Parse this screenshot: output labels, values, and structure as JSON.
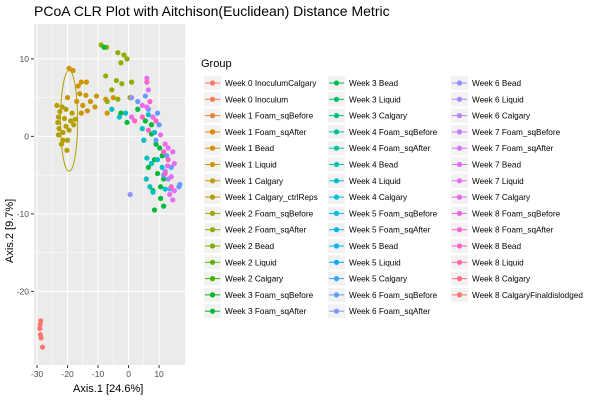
{
  "chart_data": {
    "type": "scatter",
    "title": "PCoA CLR Plot with Aitchison(Euclidean) Distance Metric",
    "xlabel": "Axis.1   [24.6%]",
    "ylabel": "Axis.2   [9.7%]",
    "xlim": [
      -31,
      18.5
    ],
    "ylim": [
      -29.5,
      14.5
    ],
    "xticks": [
      -30,
      -20,
      -10,
      0,
      10
    ],
    "yticks": [
      10,
      0,
      -10,
      -20
    ],
    "grid": true,
    "legend_title": "Group",
    "legend_position": "right",
    "legend": [
      {
        "label": "Week 0 InoculumCalgary",
        "color": "#F8766D"
      },
      {
        "label": "Week 0 Inoculum",
        "color": "#F27D52"
      },
      {
        "label": "Week 1 Foam_sqBefore",
        "color": "#EA8331"
      },
      {
        "label": "Week 1 Foam_sqAfter",
        "color": "#E18A00"
      },
      {
        "label": "Week 1 Bead",
        "color": "#D89000"
      },
      {
        "label": "Week 1 Liquid",
        "color": "#CD9600"
      },
      {
        "label": "Week 1 Calgary",
        "color": "#C09B00"
      },
      {
        "label": "Week 1 Calgary_ctrlReps",
        "color": "#B3A000"
      },
      {
        "label": "Week 2 Foam_sqBefore",
        "color": "#A3A500"
      },
      {
        "label": "Week 2 Foam_sqAfter",
        "color": "#93AA00"
      },
      {
        "label": "Week 2 Bead",
        "color": "#7CAE00"
      },
      {
        "label": "Week 2 Liquid",
        "color": "#5EB300"
      },
      {
        "label": "Week 2 Calgary",
        "color": "#39B600"
      },
      {
        "label": "Week 3 Foam_sqBefore",
        "color": "#00B81F"
      },
      {
        "label": "Week 3 Foam_sqAfter",
        "color": "#00BA38"
      },
      {
        "label": "Week 3 Bead",
        "color": "#00BC50"
      },
      {
        "label": "Week 3 Liquid",
        "color": "#00BE67"
      },
      {
        "label": "Week 3 Calgary",
        "color": "#00BF7D"
      },
      {
        "label": "Week 4 Foam_sqBefore",
        "color": "#00C091"
      },
      {
        "label": "Week 4 Foam_sqAfter",
        "color": "#00C1A3"
      },
      {
        "label": "Week 4 Bead",
        "color": "#00C0B4"
      },
      {
        "label": "Week 4 Liquid",
        "color": "#00BFC4"
      },
      {
        "label": "Week 4 Calgary",
        "color": "#00BDD4"
      },
      {
        "label": "Week 5 Foam_sqBefore",
        "color": "#00BAE0"
      },
      {
        "label": "Week 5 Foam_sqAfter",
        "color": "#00B5EC"
      },
      {
        "label": "Week 5 Bead",
        "color": "#00B0F6"
      },
      {
        "label": "Week 5 Liquid",
        "color": "#00A9FF"
      },
      {
        "label": "Week 5 Calgary",
        "color": "#35A2FF"
      },
      {
        "label": "Week 6 Foam_sqBefore",
        "color": "#619CFF"
      },
      {
        "label": "Week 6 Foam_sqAfter",
        "color": "#7F96FF"
      },
      {
        "label": "Week 6 Bead",
        "color": "#9590FF"
      },
      {
        "label": "Week 6 Liquid",
        "color": "#A58AFF"
      },
      {
        "label": "Week 6 Calgary",
        "color": "#B983FF"
      },
      {
        "label": "Week 7 Foam_sqBefore",
        "color": "#C77CFF"
      },
      {
        "label": "Week 7 Foam_sqAfter",
        "color": "#D575FE"
      },
      {
        "label": "Week 7 Bead",
        "color": "#E16EF6"
      },
      {
        "label": "Week 7 Liquid",
        "color": "#E76BF3"
      },
      {
        "label": "Week 7 Calgary",
        "color": "#F064E9"
      },
      {
        "label": "Week 8 Foam_sqBefore",
        "color": "#F763E0"
      },
      {
        "label": "Week 8 Foam_sqAfter",
        "color": "#FA62D4"
      },
      {
        "label": "Week 8 Bead",
        "color": "#FF61C3"
      },
      {
        "label": "Week 8 Liquid",
        "color": "#FF67A4"
      },
      {
        "label": "Week 8 Calgary",
        "color": "#FD6F88"
      },
      {
        "label": "Week 8 CalgaryFinaldislodged",
        "color": "#F8766D"
      }
    ],
    "ellipse": {
      "cx": -19.5,
      "cy": 2,
      "rx": 2.8,
      "ry": 6.5,
      "color": "#B3A000"
    },
    "series": [
      {
        "color": "#F8766D",
        "points": [
          [
            -28.8,
            -23.8
          ],
          [
            -29.0,
            -24.3
          ],
          [
            -29.1,
            -24.8
          ],
          [
            -28.9,
            -25.6
          ],
          [
            -28.7,
            -26.0
          ],
          [
            -28.2,
            -27.2
          ]
        ]
      },
      {
        "color": "#B3A000",
        "points": [
          [
            -23.5,
            4.0
          ],
          [
            -21.8,
            3.8
          ],
          [
            -20.5,
            3.5
          ],
          [
            -22.5,
            3.2
          ],
          [
            -23.0,
            2.5
          ],
          [
            -21.0,
            2.3
          ],
          [
            -19.0,
            2.0
          ],
          [
            -23.2,
            1.8
          ],
          [
            -20.5,
            1.3
          ],
          [
            -18.0,
            1.5
          ],
          [
            -22.8,
            1.0
          ],
          [
            -21.5,
            0.5
          ],
          [
            -19.5,
            0.8
          ],
          [
            -23.0,
            0.2
          ],
          [
            -21.5,
            -0.5
          ],
          [
            -20.0,
            -0.5
          ],
          [
            -22.0,
            -1.0
          ],
          [
            -20.2,
            -1.8
          ],
          [
            -18.5,
            3.0
          ],
          [
            -17.5,
            2.2
          ]
        ]
      },
      {
        "color": "#CD9600",
        "points": [
          [
            -20.0,
            5.0
          ],
          [
            -17.0,
            4.5
          ],
          [
            -19.5,
            8.8
          ],
          [
            -18.2,
            8.5
          ],
          [
            -16.5,
            6.5
          ],
          [
            -15.5,
            7.0
          ],
          [
            -13.8,
            7.0
          ],
          [
            -16.0,
            5.5
          ],
          [
            -14.0,
            5.3
          ],
          [
            -12.5,
            4.5
          ],
          [
            -10.5,
            5.2
          ],
          [
            -15.0,
            4.0
          ],
          [
            -13.5,
            3.3
          ],
          [
            -11.0,
            3.8
          ],
          [
            -7.5,
            4.8
          ],
          [
            -5.0,
            5.0
          ],
          [
            -15.5,
            3.0
          ],
          [
            -7.0,
            3.0
          ]
        ]
      },
      {
        "color": "#93AA00",
        "points": [
          [
            -9.0,
            11.8
          ],
          [
            -7.2,
            11.5
          ],
          [
            -3.5,
            10.8
          ],
          [
            -1.5,
            10.5
          ],
          [
            -2.5,
            9.5
          ],
          [
            -0.5,
            10.0
          ],
          [
            -7.5,
            7.8
          ],
          [
            -5.5,
            6.0
          ],
          [
            -4.0,
            7.2
          ],
          [
            -2.2,
            6.8
          ],
          [
            1.0,
            7.0
          ],
          [
            -7.0,
            4.5
          ],
          [
            -3.5,
            4.8
          ],
          [
            0.5,
            5.0
          ]
        ]
      },
      {
        "color": "#00BA38",
        "points": [
          [
            -8.0,
            11.5
          ],
          [
            -2.5,
            3.0
          ],
          [
            -0.5,
            1.8
          ],
          [
            3.0,
            3.5
          ],
          [
            5.5,
            2.0
          ],
          [
            7.5,
            1.5
          ],
          [
            7.5,
            0.3
          ],
          [
            9.0,
            -1.0
          ],
          [
            10.2,
            -1.5
          ],
          [
            11.0,
            -2.5
          ],
          [
            8.5,
            -3.0
          ],
          [
            6.5,
            -4.0
          ],
          [
            9.5,
            -4.8
          ],
          [
            11.5,
            -5.5
          ],
          [
            10.5,
            -6.5
          ],
          [
            8.0,
            -7.0
          ],
          [
            10.5,
            -8.0
          ],
          [
            11.5,
            -9.0
          ],
          [
            8.5,
            -9.5
          ]
        ]
      },
      {
        "color": "#00BFC4",
        "points": [
          [
            -5.5,
            3.5
          ],
          [
            -3.0,
            2.5
          ],
          [
            -1.0,
            3.0
          ],
          [
            4.5,
            1.0
          ],
          [
            6.5,
            2.8
          ],
          [
            5.0,
            -0.5
          ],
          [
            8.5,
            0.5
          ],
          [
            6.0,
            -2.8
          ],
          [
            7.5,
            -3.5
          ],
          [
            9.5,
            -3.0
          ],
          [
            11.0,
            -4.0
          ],
          [
            5.8,
            -5.5
          ],
          [
            7.0,
            -6.5
          ],
          [
            12.0,
            -6.8
          ],
          [
            8.0,
            -7.2
          ]
        ]
      },
      {
        "color": "#619CFF",
        "points": [
          [
            3.0,
            4.5
          ],
          [
            5.5,
            5.2
          ],
          [
            6.5,
            3.5
          ],
          [
            9.5,
            3.0
          ],
          [
            10.0,
            1.5
          ],
          [
            9.0,
            -0.5
          ],
          [
            12.5,
            -2.5
          ],
          [
            14.0,
            -4.0
          ],
          [
            11.5,
            -5.0
          ],
          [
            13.5,
            -6.8
          ],
          [
            16.5,
            -6.5
          ],
          [
            16.8,
            -6.2
          ]
        ]
      },
      {
        "color": "#9590FF",
        "points": [
          [
            0.5,
            -7.5
          ],
          [
            1.0,
            5.0
          ],
          [
            12.0,
            -4.5
          ],
          [
            13.0,
            -5.5
          ]
        ]
      },
      {
        "color": "#E76BF3",
        "points": [
          [
            6.0,
            7.5
          ],
          [
            6.5,
            6.0
          ],
          [
            4.5,
            4.0
          ],
          [
            6.0,
            3.8
          ],
          [
            8.0,
            2.5
          ],
          [
            1.0,
            2.5
          ],
          [
            10.5,
            0.2
          ],
          [
            12.0,
            -1.0
          ],
          [
            13.0,
            -1.5
          ],
          [
            14.5,
            -2.0
          ],
          [
            15.0,
            -3.5
          ],
          [
            12.8,
            -3.8
          ],
          [
            14.0,
            -5.2
          ],
          [
            15.0,
            -7.0
          ],
          [
            13.5,
            -7.5
          ],
          [
            14.5,
            -8.2
          ]
        ]
      },
      {
        "color": "#FF61C3",
        "points": [
          [
            6.0,
            7.0
          ],
          [
            7.0,
            4.5
          ],
          [
            4.5,
            2.5
          ],
          [
            2.0,
            2.0
          ],
          [
            9.0,
            2.0
          ],
          [
            6.5,
            0.8
          ],
          [
            11.5,
            -2.0
          ],
          [
            13.0,
            -3.0
          ],
          [
            12.0,
            -4.8
          ],
          [
            14.0,
            -6.5
          ]
        ]
      }
    ]
  }
}
